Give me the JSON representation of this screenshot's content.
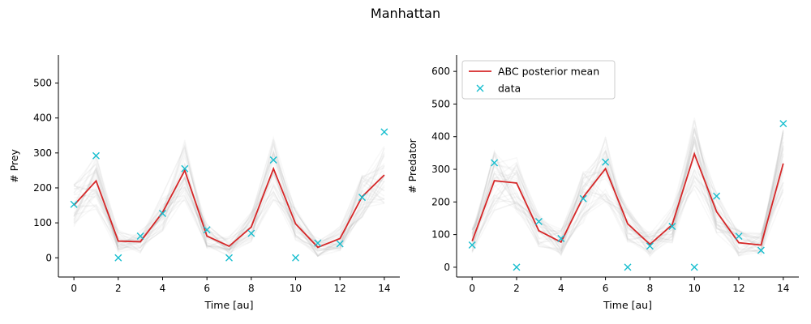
{
  "figure": {
    "title": "Manhattan"
  },
  "chart_data": [
    {
      "type": "line",
      "xlabel": "Time [au]",
      "ylabel": "# Prey",
      "xlim": [
        -0.7,
        14.7
      ],
      "ylim": [
        -55,
        580
      ],
      "xticks": [
        0,
        2,
        4,
        6,
        8,
        10,
        12,
        14
      ],
      "yticks": [
        0,
        100,
        200,
        300,
        400,
        500
      ],
      "grid": false,
      "legend": null,
      "x": [
        0,
        1,
        2,
        3,
        4,
        5,
        6,
        7,
        8,
        9,
        10,
        11,
        12,
        13,
        14
      ],
      "series": [
        {
          "name": "",
          "kind": "line",
          "color": "#d62728",
          "values": [
            150,
            220,
            48,
            46,
            130,
            250,
            62,
            33,
            88,
            255,
            97,
            30,
            55,
            175,
            237
          ]
        },
        {
          "name": "",
          "kind": "marker",
          "color": "#17becf",
          "values": [
            153,
            292,
            0,
            62,
            127,
            255,
            80,
            0,
            70,
            280,
            0,
            42,
            40,
            173,
            360
          ]
        }
      ],
      "posterior_band": {
        "color": "#9e9e9e",
        "samples": 36
      }
    },
    {
      "type": "line",
      "xlabel": "Time [au]",
      "ylabel": "# Predator",
      "xlim": [
        -0.7,
        14.7
      ],
      "ylim": [
        -30,
        650
      ],
      "xticks": [
        0,
        2,
        4,
        6,
        8,
        10,
        12,
        14
      ],
      "yticks": [
        0,
        100,
        200,
        300,
        400,
        500,
        600
      ],
      "grid": false,
      "legend": "top-left",
      "x": [
        0,
        1,
        2,
        3,
        4,
        5,
        6,
        7,
        8,
        9,
        10,
        11,
        12,
        13,
        14
      ],
      "series": [
        {
          "name": "ABC posterior mean",
          "kind": "line",
          "color": "#d62728",
          "values": [
            80,
            265,
            258,
            112,
            77,
            215,
            302,
            133,
            70,
            130,
            347,
            170,
            75,
            68,
            318
          ]
        },
        {
          "name": "data",
          "kind": "marker",
          "color": "#17becf",
          "values": [
            68,
            320,
            0,
            140,
            88,
            210,
            322,
            0,
            65,
            125,
            0,
            218,
            95,
            52,
            440
          ]
        }
      ],
      "posterior_band": {
        "color": "#9e9e9e",
        "samples": 36
      }
    }
  ]
}
